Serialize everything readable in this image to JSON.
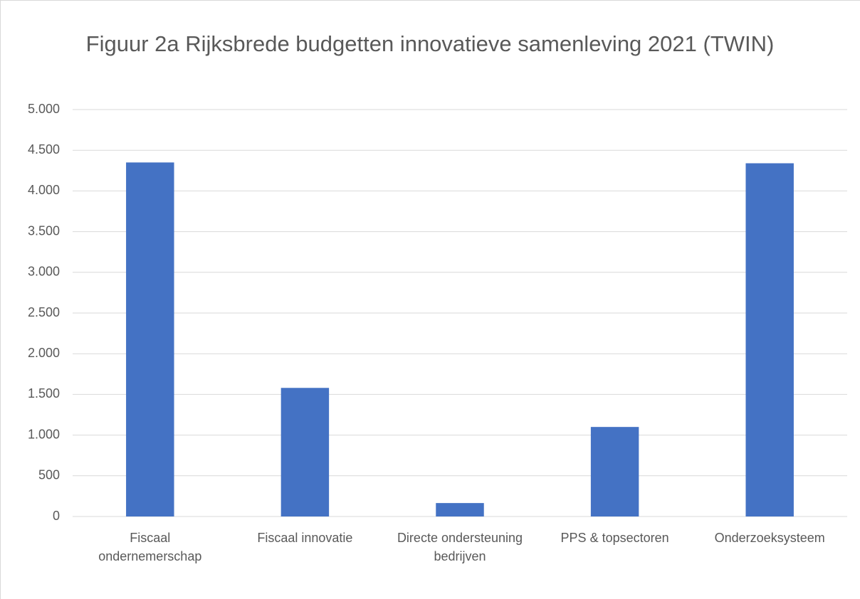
{
  "chart_data": {
    "type": "bar",
    "title": "Figuur 2a Rijksbrede budgetten innovatieve samenleving 2021 (TWIN)",
    "categories": [
      "Fiscaal ondernemerschap",
      "Fiscaal innovatie",
      "Directe ondersteuning bedrijven",
      "PPS & topsectoren",
      "Onderzoeksysteem"
    ],
    "values": [
      4350,
      1580,
      165,
      1100,
      4340
    ],
    "color": "#4472c4",
    "ylim": [
      0,
      5000
    ],
    "yticks": [
      0,
      500,
      {
        "value": 1000,
        "label": "1.000"
      },
      {
        "value": 1500,
        "label": "1.500"
      },
      {
        "value": 2000,
        "label": "2.000"
      },
      {
        "value": 2500,
        "label": "2.500"
      },
      {
        "value": 3000,
        "label": "3.000"
      },
      {
        "value": 3500,
        "label": "3.500"
      },
      {
        "value": 4000,
        "label": "4.000"
      },
      {
        "value": 4500,
        "label": "4.500"
      },
      {
        "value": 5000,
        "label": "5.000"
      }
    ],
    "grid": true
  }
}
